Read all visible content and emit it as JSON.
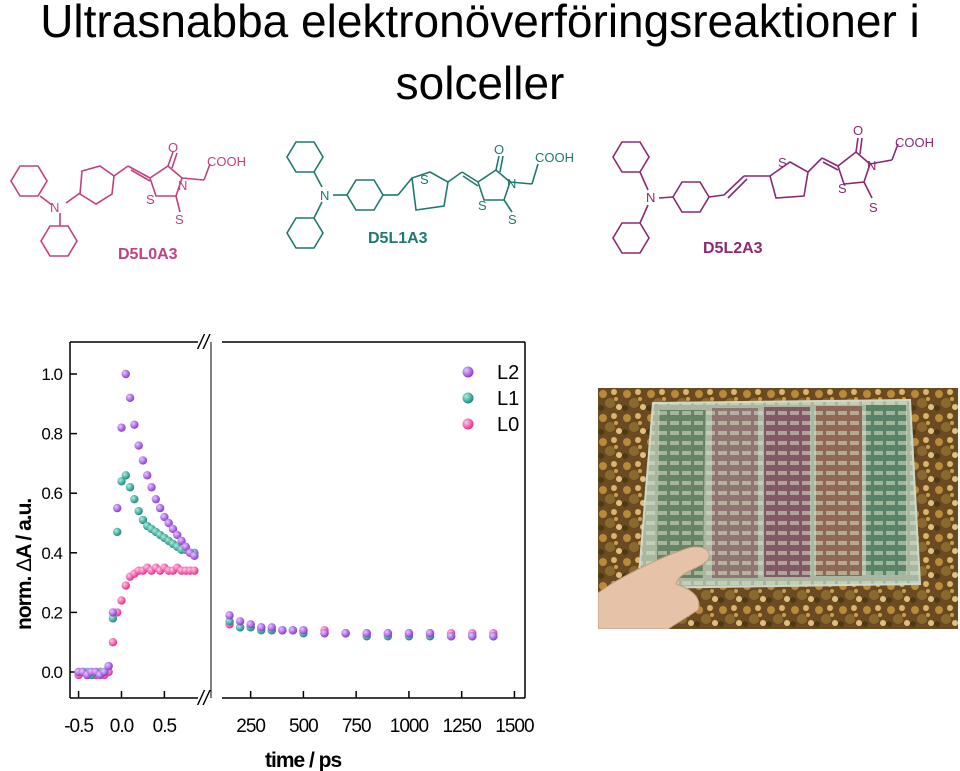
{
  "title": {
    "line1": "Ultrasnabba elektronöverföringsreaktioner i",
    "line2": "solceller"
  },
  "molecules": [
    {
      "name": "D5L0A3",
      "color": "#c2407f",
      "atoms": {
        "n": "N",
        "o": "O",
        "s": "S",
        "cooh": "COOH"
      }
    },
    {
      "name": "D5L1A3",
      "color": "#1f7a6e",
      "atoms": {
        "n": "N",
        "o": "O",
        "s": "S",
        "cooh": "COOH"
      }
    },
    {
      "name": "D5L2A3",
      "color": "#8a2a70",
      "atoms": {
        "n": "N",
        "o": "O",
        "s": "S",
        "cooh": "COOH"
      }
    }
  ],
  "chart_data": {
    "type": "scatter",
    "xlabel": "time / ps",
    "ylabel": "norm. ΔA / a.u.",
    "ylabel_parts": {
      "left": "norm. ",
      "glyph": "Δ",
      "right": "A / a.u."
    },
    "x_tick_labels_left": [
      "-0.5",
      "0.0",
      "0.5"
    ],
    "x_tick_labels_right": [
      "250",
      "500",
      "750",
      "1000",
      "1250",
      "1500"
    ],
    "y_tick_labels": [
      "0.0",
      "0.2",
      "0.4",
      "0.6",
      "0.8",
      "1.0"
    ],
    "xlim_left": [
      -0.6,
      0.95
    ],
    "xlim_right": [
      100,
      1550
    ],
    "ylim": [
      0,
      1.05
    ],
    "axis_break": "//",
    "legend_position": "top-right",
    "series": [
      {
        "name": "L2",
        "color": "#8e3cd6",
        "left": [
          [
            -0.5,
            0.0
          ],
          [
            -0.45,
            0.0
          ],
          [
            -0.4,
            -0.01
          ],
          [
            -0.35,
            0.0
          ],
          [
            -0.3,
            0.0
          ],
          [
            -0.25,
            -0.01
          ],
          [
            -0.2,
            0.0
          ],
          [
            -0.15,
            0.02
          ],
          [
            -0.1,
            0.2
          ],
          [
            -0.05,
            0.55
          ],
          [
            0.0,
            0.82
          ],
          [
            0.05,
            1.0
          ],
          [
            0.1,
            0.92
          ],
          [
            0.15,
            0.83
          ],
          [
            0.2,
            0.76
          ],
          [
            0.25,
            0.71
          ],
          [
            0.3,
            0.66
          ],
          [
            0.35,
            0.62
          ],
          [
            0.4,
            0.58
          ],
          [
            0.45,
            0.55
          ],
          [
            0.5,
            0.52
          ],
          [
            0.55,
            0.5
          ],
          [
            0.6,
            0.48
          ],
          [
            0.65,
            0.46
          ],
          [
            0.7,
            0.44
          ],
          [
            0.75,
            0.42
          ],
          [
            0.8,
            0.4
          ],
          [
            0.85,
            0.39
          ]
        ],
        "right": [
          [
            150,
            0.19
          ],
          [
            200,
            0.17
          ],
          [
            250,
            0.16
          ],
          [
            300,
            0.15
          ],
          [
            350,
            0.15
          ],
          [
            400,
            0.14
          ],
          [
            450,
            0.14
          ],
          [
            500,
            0.14
          ],
          [
            600,
            0.13
          ],
          [
            700,
            0.13
          ],
          [
            800,
            0.13
          ],
          [
            900,
            0.13
          ],
          [
            1000,
            0.13
          ],
          [
            1100,
            0.13
          ],
          [
            1200,
            0.12
          ],
          [
            1300,
            0.12
          ],
          [
            1400,
            0.12
          ]
        ]
      },
      {
        "name": "L1",
        "color": "#1f8a7e",
        "left": [
          [
            -0.5,
            0.0
          ],
          [
            -0.45,
            0.0
          ],
          [
            -0.4,
            0.0
          ],
          [
            -0.35,
            -0.01
          ],
          [
            -0.3,
            0.0
          ],
          [
            -0.25,
            0.0
          ],
          [
            -0.2,
            0.0
          ],
          [
            -0.15,
            0.02
          ],
          [
            -0.1,
            0.18
          ],
          [
            -0.05,
            0.47
          ],
          [
            0.0,
            0.64
          ],
          [
            0.05,
            0.66
          ],
          [
            0.1,
            0.62
          ],
          [
            0.15,
            0.58
          ],
          [
            0.2,
            0.54
          ],
          [
            0.25,
            0.51
          ],
          [
            0.3,
            0.49
          ],
          [
            0.35,
            0.48
          ],
          [
            0.4,
            0.47
          ],
          [
            0.45,
            0.46
          ],
          [
            0.5,
            0.45
          ],
          [
            0.55,
            0.44
          ],
          [
            0.6,
            0.43
          ],
          [
            0.65,
            0.42
          ],
          [
            0.7,
            0.41
          ],
          [
            0.75,
            0.41
          ],
          [
            0.8,
            0.4
          ],
          [
            0.85,
            0.4
          ]
        ],
        "right": [
          [
            150,
            0.17
          ],
          [
            200,
            0.15
          ],
          [
            250,
            0.15
          ],
          [
            300,
            0.14
          ],
          [
            350,
            0.14
          ],
          [
            400,
            0.14
          ],
          [
            450,
            0.14
          ],
          [
            500,
            0.13
          ],
          [
            600,
            0.13
          ],
          [
            700,
            0.13
          ],
          [
            800,
            0.12
          ],
          [
            900,
            0.12
          ],
          [
            1000,
            0.12
          ],
          [
            1100,
            0.12
          ],
          [
            1200,
            0.12
          ],
          [
            1300,
            0.12
          ],
          [
            1400,
            0.12
          ]
        ]
      },
      {
        "name": "L0",
        "color": "#ea2f8f",
        "left": [
          [
            -0.5,
            -0.01
          ],
          [
            -0.45,
            0.0
          ],
          [
            -0.4,
            -0.01
          ],
          [
            -0.35,
            0.0
          ],
          [
            -0.3,
            -0.01
          ],
          [
            -0.25,
            0.0
          ],
          [
            -0.2,
            -0.01
          ],
          [
            -0.15,
            0.0
          ],
          [
            -0.1,
            0.1
          ],
          [
            -0.05,
            0.2
          ],
          [
            0.0,
            0.24
          ],
          [
            0.05,
            0.29
          ],
          [
            0.1,
            0.32
          ],
          [
            0.15,
            0.33
          ],
          [
            0.2,
            0.34
          ],
          [
            0.25,
            0.34
          ],
          [
            0.3,
            0.35
          ],
          [
            0.35,
            0.34
          ],
          [
            0.4,
            0.35
          ],
          [
            0.45,
            0.34
          ],
          [
            0.5,
            0.35
          ],
          [
            0.55,
            0.34
          ],
          [
            0.6,
            0.34
          ],
          [
            0.65,
            0.35
          ],
          [
            0.7,
            0.34
          ],
          [
            0.75,
            0.34
          ],
          [
            0.8,
            0.34
          ],
          [
            0.85,
            0.34
          ]
        ],
        "right": [
          [
            150,
            0.16
          ],
          [
            200,
            0.15
          ],
          [
            250,
            0.15
          ],
          [
            300,
            0.15
          ],
          [
            350,
            0.14
          ],
          [
            400,
            0.14
          ],
          [
            450,
            0.14
          ],
          [
            500,
            0.14
          ],
          [
            600,
            0.14
          ],
          [
            700,
            0.13
          ],
          [
            800,
            0.13
          ],
          [
            900,
            0.13
          ],
          [
            1000,
            0.13
          ],
          [
            1100,
            0.13
          ],
          [
            1200,
            0.13
          ],
          [
            1300,
            0.13
          ],
          [
            1400,
            0.13
          ]
        ]
      }
    ]
  },
  "photo": {
    "subject": "solar-cell-module-photo",
    "frame_color": "#9aa89a"
  }
}
